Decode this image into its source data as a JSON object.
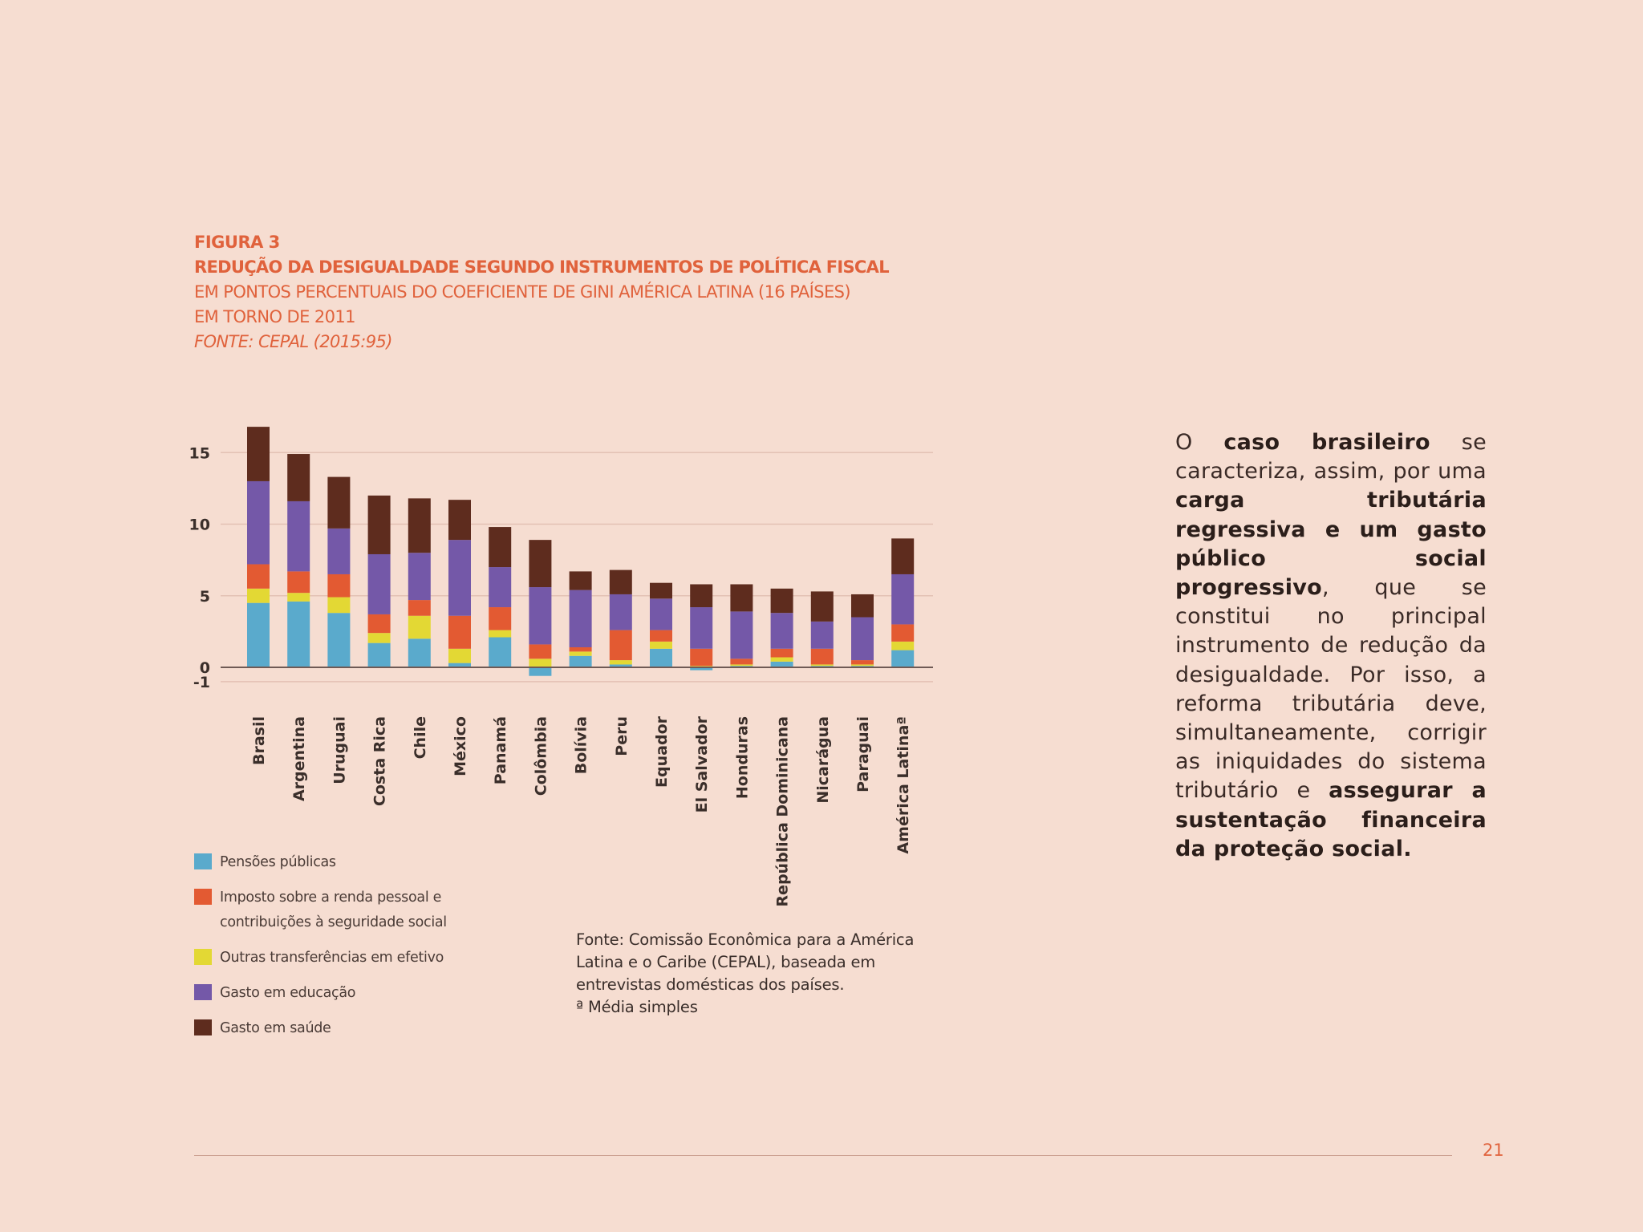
{
  "figure": {
    "label": "FIGURA 3",
    "title": "REDUÇÃO DA DESIGUALDADE SEGUNDO INSTRUMENTOS DE POLÍTICA FISCAL",
    "subtitle1": "EM PONTOS PERCENTUAIS DO COEFICIENTE DE GINI AMÉRICA LATINA (16 PAÍSES)",
    "subtitle2": "EM TORNO DE 2011",
    "source": "FONTE: CEPAL (2015:95)"
  },
  "chart_data": {
    "type": "bar",
    "stacked": true,
    "categories": [
      "Brasil",
      "Argentina",
      "Uruguai",
      "Costa Rica",
      "Chile",
      "México",
      "Panamá",
      "Colômbia",
      "Bolívia",
      "Peru",
      "Equador",
      "El Salvador",
      "Honduras",
      "República Dominicana",
      "Nicarágua",
      "Paraguai",
      "América Latinaª"
    ],
    "y_ticks": [
      {
        "value": 15,
        "label": "15"
      },
      {
        "value": 10,
        "label": "10"
      },
      {
        "value": 5,
        "label": "5"
      },
      {
        "value": 0,
        "label": "0"
      },
      {
        "value": -1,
        "label": "-1"
      }
    ],
    "ylim": [
      -1,
      16.9
    ],
    "grid": true,
    "series": [
      {
        "name": "Pensões públicas",
        "color": "#5aaacc",
        "values": [
          4.5,
          4.6,
          3.8,
          1.7,
          2.0,
          0.3,
          2.1,
          -0.6,
          0.8,
          0.2,
          1.3,
          -0.2,
          0.1,
          0.4,
          0.1,
          0.1,
          1.2
        ]
      },
      {
        "name": "Outras transferências em efetivo",
        "color": "#e3d834",
        "values": [
          1.0,
          0.6,
          1.1,
          0.7,
          1.6,
          1.0,
          0.5,
          0.6,
          0.3,
          0.3,
          0.5,
          0.1,
          0.1,
          0.3,
          0.1,
          0.1,
          0.6
        ]
      },
      {
        "name": "Imposto sobre a renda pessoal e contribuições à seguridade social",
        "color": "#e35a32",
        "values": [
          1.7,
          1.5,
          1.6,
          1.3,
          1.1,
          2.3,
          1.6,
          1.0,
          0.3,
          2.1,
          0.8,
          1.2,
          0.4,
          0.6,
          1.1,
          0.3,
          1.2
        ]
      },
      {
        "name": "Gasto em educação",
        "color": "#7458a8",
        "values": [
          5.8,
          4.9,
          3.2,
          4.2,
          3.3,
          5.3,
          2.8,
          4.0,
          4.0,
          2.5,
          2.2,
          2.9,
          3.3,
          2.5,
          1.9,
          3.0,
          3.5
        ]
      },
      {
        "name": "Gasto em saúde",
        "color": "#5e2c1e",
        "values": [
          3.8,
          3.3,
          3.6,
          4.1,
          3.8,
          2.8,
          2.8,
          3.3,
          1.3,
          1.7,
          1.1,
          1.6,
          1.9,
          1.7,
          2.1,
          1.6,
          2.5
        ]
      }
    ]
  },
  "legend": [
    {
      "label": "Pensões públicas",
      "color": "#5aaacc"
    },
    {
      "label": "Imposto sobre a renda pessoal e contribuições à seguridade social",
      "color": "#e35a32"
    },
    {
      "label": "Outras transferências em efetivo",
      "color": "#e3d834"
    },
    {
      "label": "Gasto em educação",
      "color": "#7458a8"
    },
    {
      "label": "Gasto em saúde",
      "color": "#5e2c1e"
    }
  ],
  "note": {
    "source": "Fonte: Comissão Econômica para a América Latina e o Caribe (CEPAL), baseada em entrevistas domésticas dos países.",
    "footnote": "ª Média simples"
  },
  "body": {
    "p1": "O ",
    "b1": "caso brasileiro",
    "p2": " se caracteriza, assim, por uma ",
    "b2": "carga tributária regressiva e um gasto público social progressivo",
    "p3": ", que se constitui no principal instrumento de redução da desigualdade. Por isso, a reforma tributária deve, simultaneamente, corrigir as iniquidades do sistema tributário e ",
    "b3": "assegurar a sustentação financeira da proteção social."
  },
  "page_number": "21"
}
